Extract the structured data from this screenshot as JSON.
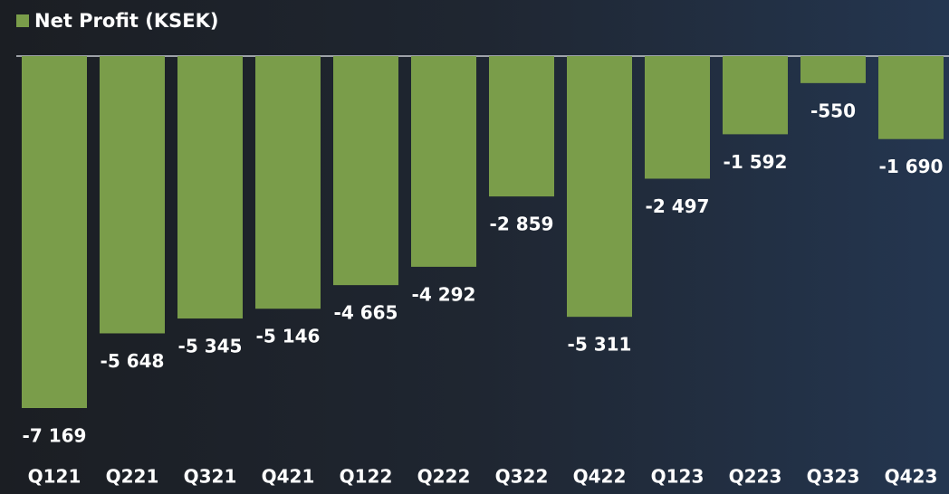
{
  "chart_data": {
    "type": "bar",
    "categories": [
      "Q121",
      "Q221",
      "Q321",
      "Q421",
      "Q122",
      "Q222",
      "Q322",
      "Q422",
      "Q123",
      "Q223",
      "Q323",
      "Q423"
    ],
    "series": [
      {
        "name": "Net Profit (KSEK)",
        "color": "#7a9d4a",
        "values": [
          -7169,
          -5648,
          -5345,
          -5146,
          -4665,
          -4292,
          -2859,
          -5311,
          -2497,
          -1592,
          -550,
          -1690
        ],
        "value_labels": [
          "-7 169",
          "-5 648",
          "-5 345",
          "-5 146",
          "-4 665",
          "-4 292",
          "-2 859",
          "-5 311",
          "-2 497",
          "-1 592",
          "-550",
          "-1 690"
        ]
      }
    ]
  }
}
